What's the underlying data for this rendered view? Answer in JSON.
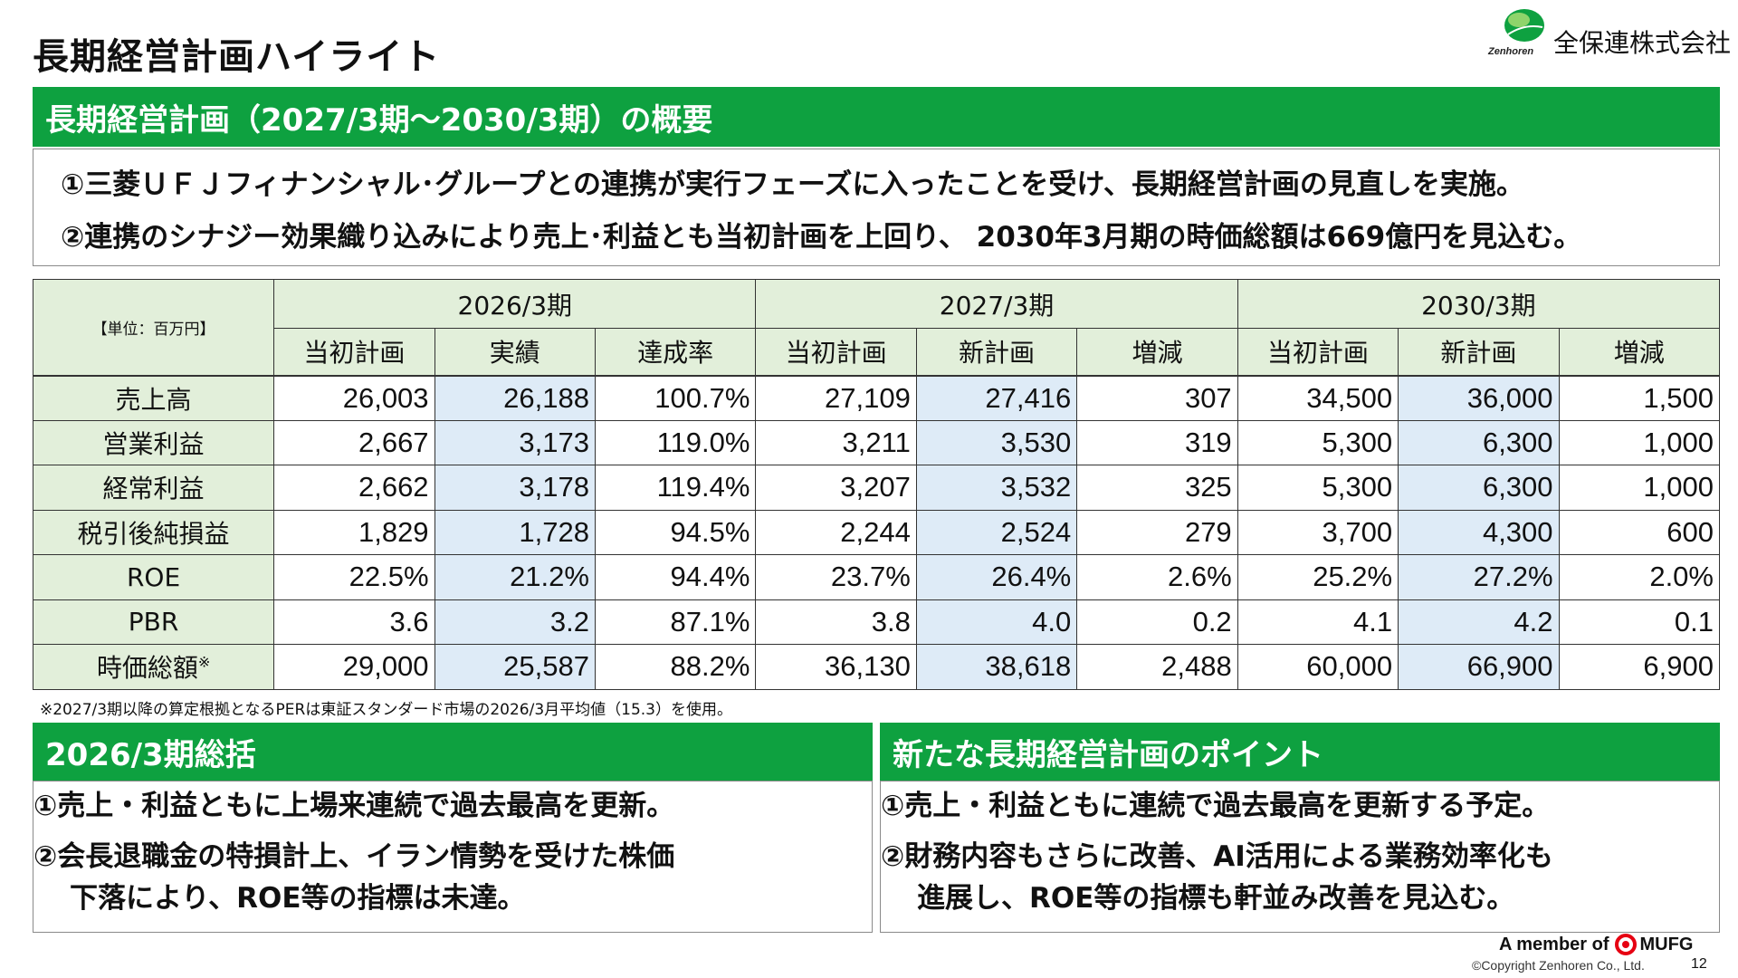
{
  "page": {
    "title": "長期経営計画ハイライト",
    "page_number": "12"
  },
  "logo": {
    "en": "Zenhoren",
    "name": "全保連株式会社"
  },
  "colors": {
    "brand_green": "#0ea140",
    "header_cell": "#e2efda",
    "highlight_cell": "#deebf7"
  },
  "overview": {
    "heading": "長期経営計画（2027/3期～2030/3期）の概要",
    "lines": [
      "①三菱ＵＦＪフィナンシャル･グループとの連携が実行フェーズに入ったことを受け、長期経営計画の見直しを実施。",
      "②連携のシナジー効果織り込みにより売上･利益とも当初計画を上回り、 2030年3月期の時価総額は669億円を見込む。"
    ]
  },
  "table": {
    "unit_label": "【単位：百万円】",
    "periods": [
      "2026/3期",
      "2027/3期",
      "2030/3期"
    ],
    "subheaders": [
      "当初計画",
      "実績",
      "達成率",
      "当初計画",
      "新計画",
      "増減",
      "当初計画",
      "新計画",
      "増減"
    ],
    "rows": [
      {
        "label": "売上高",
        "note": "",
        "values": [
          "26,003",
          "26,188",
          "100.7%",
          "27,109",
          "27,416",
          "307",
          "34,500",
          "36,000",
          "1,500"
        ]
      },
      {
        "label": "営業利益",
        "note": "",
        "values": [
          "2,667",
          "3,173",
          "119.0%",
          "3,211",
          "3,530",
          "319",
          "5,300",
          "6,300",
          "1,000"
        ]
      },
      {
        "label": "経常利益",
        "note": "",
        "values": [
          "2,662",
          "3,178",
          "119.4%",
          "3,207",
          "3,532",
          "325",
          "5,300",
          "6,300",
          "1,000"
        ]
      },
      {
        "label": "税引後純損益",
        "note": "",
        "values": [
          "1,829",
          "1,728",
          "94.5%",
          "2,244",
          "2,524",
          "279",
          "3,700",
          "4,300",
          "600"
        ]
      },
      {
        "label": "ROE",
        "note": "",
        "values": [
          "22.5%",
          "21.2%",
          "94.4%",
          "23.7%",
          "26.4%",
          "2.6%",
          "25.2%",
          "27.2%",
          "2.0%"
        ]
      },
      {
        "label": "PBR",
        "note": "",
        "values": [
          "3.6",
          "3.2",
          "87.1%",
          "3.8",
          "4.0",
          "0.2",
          "4.1",
          "4.2",
          "0.1"
        ]
      },
      {
        "label": "時価総額",
        "note": "※",
        "values": [
          "29,000",
          "25,587",
          "88.2%",
          "36,130",
          "38,618",
          "2,488",
          "60,000",
          "66,900",
          "6,900"
        ]
      }
    ],
    "footnote": "※2027/3期以降の算定根拠となるPERは東証スタンダード市場の2026/3月平均値（15.3）を使用。"
  },
  "summary_2026": {
    "heading": "2026/3期総括",
    "point1": "①売上・利益ともに上場来連続で過去最高を更新。",
    "point2_line1": "②会長退職金の特損計上、イラン情勢を受けた株価",
    "point2_line2": "下落により、ROE等の指標は未達。"
  },
  "new_plan": {
    "heading": "新たな長期経営計画のポイント",
    "point1": "①売上・利益ともに連続で過去最高を更新する予定。",
    "point2_line1": "②財務内容もさらに改善、AI活用による業務効率化も",
    "point2_line2": "進展し、ROE等の指標も軒並み改善を見込む。"
  },
  "footer": {
    "member_text": "A member of",
    "mufg": "MUFG",
    "copyright": "©Copyright Zenhoren Co., Ltd."
  }
}
